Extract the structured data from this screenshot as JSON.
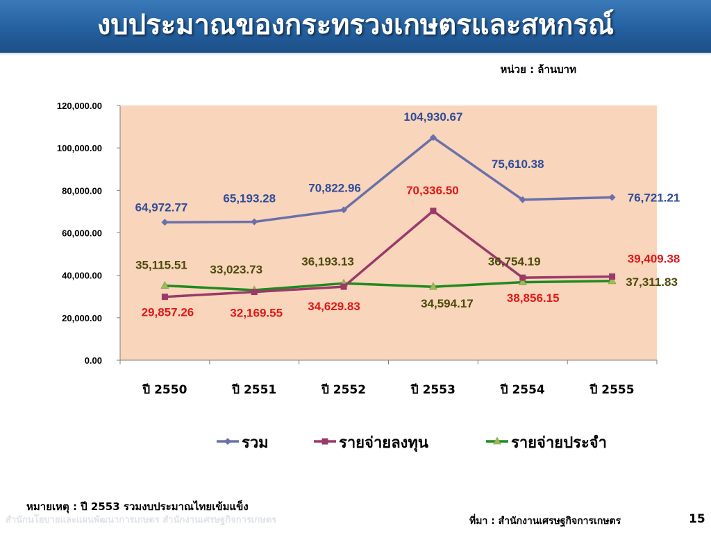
{
  "slide": {
    "title": "งบประมาณของกระทรวงเกษตรและสหกรณ์",
    "unit_label": "หน่วย : ล้านบาท",
    "footnote": "หมายเหตุ :   ปี 2553 รวมงบประมาณไทยเข้มแข็ง",
    "watermark": "สำนักนโยบายและแผนพัฒนาการเกษตร  สำนักงานเศรษฐกิจการเกษตร",
    "source": "ที่มา : สำนักงานเศรษฐกิจการเกษตร",
    "page_number": "15"
  },
  "colors": {
    "banner": "#2460a0",
    "plot_background": "#f9d5bb",
    "total": "#6a70aa",
    "investment": "#9a3a68",
    "regular": "#1f8a1f",
    "total_label": "#2e4c9a",
    "investment_label": "#e01818",
    "regular_label": "#4a4a0a"
  },
  "chart_data": {
    "type": "line",
    "categories": [
      "ปี 2550",
      "ปี 2551",
      "ปี 2552",
      "ปี 2553",
      "ปี 2554",
      "ปี 2555"
    ],
    "ylim": [
      0,
      120000
    ],
    "yticks": [
      "0.00",
      "20,000.00",
      "40,000.00",
      "60,000.00",
      "80,000.00",
      "100,000.00",
      "120,000.00"
    ],
    "legend_position": "bottom",
    "series": [
      {
        "name": "รวม",
        "key": "total",
        "marker": "diamond",
        "values": [
          64972.77,
          65193.28,
          70822.96,
          104930.67,
          75610.38,
          76721.21
        ],
        "labels": [
          "64,972.77",
          "65,193.28",
          "70,822.96",
          "104,930.67",
          "75,610.38",
          "76,721.21"
        ]
      },
      {
        "name": "รายจ่ายลงทุน",
        "key": "investment",
        "marker": "square",
        "values": [
          29857.26,
          32169.55,
          34629.83,
          70336.5,
          38856.15,
          39409.38
        ],
        "labels": [
          "29,857.26",
          "32,169.55",
          "34,629.83",
          "70,336.50",
          "38,856.15",
          "39,409.38"
        ]
      },
      {
        "name": "รายจ่ายประจำ",
        "key": "regular",
        "marker": "triangle",
        "values": [
          35115.51,
          33023.73,
          36193.13,
          34594.17,
          36754.19,
          37311.83
        ],
        "labels": [
          "35,115.51",
          "33,023.73",
          "36,193.13",
          "34,594.17",
          "36,754.19",
          "37,311.83"
        ]
      }
    ]
  }
}
